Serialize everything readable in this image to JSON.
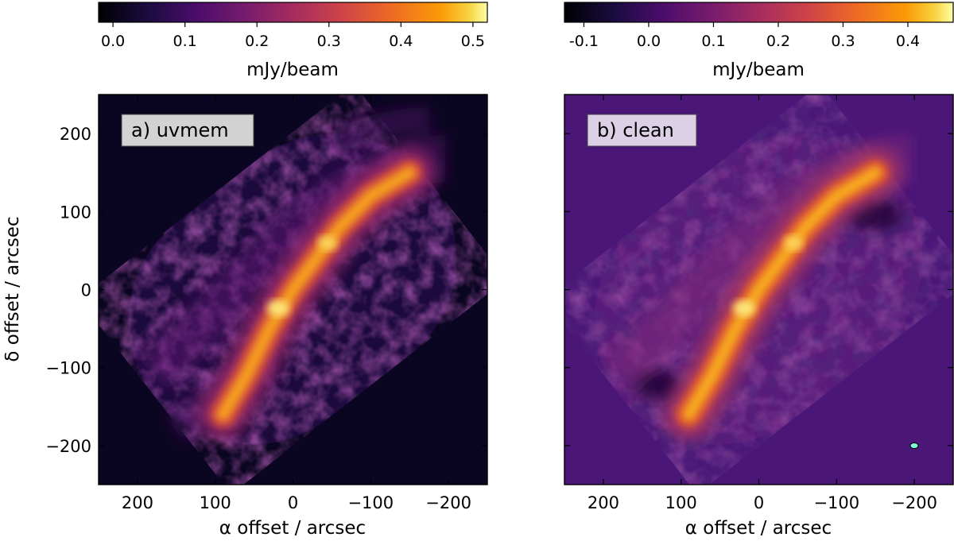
{
  "chart_data": [
    {
      "type": "heatmap",
      "panel_label": "a) uvmem",
      "colormap": "inferno",
      "background_color": "#0a0520",
      "label_box_color": "#d3d3d3",
      "colorbar": {
        "label": "mJy/beam",
        "range": [
          -0.02,
          0.52
        ],
        "ticks": [
          0.0,
          0.1,
          0.2,
          0.3,
          0.4,
          0.5
        ],
        "tick_labels": [
          "0.0",
          "0.1",
          "0.2",
          "0.3",
          "0.4",
          "0.5"
        ]
      },
      "xlabel": "α offset / arcsec",
      "ylabel": "δ offset / arcsec",
      "xlim": [
        250,
        -250
      ],
      "ylim": [
        -250,
        250
      ],
      "x_ticks": [
        200,
        100,
        0,
        -100,
        -200
      ],
      "x_tick_labels": [
        "200",
        "100",
        "0",
        "−100",
        "−200"
      ],
      "y_ticks": [
        200,
        100,
        0,
        -100,
        -200
      ],
      "y_tick_labels": [
        "200",
        "100",
        "0",
        "−100",
        "−200"
      ],
      "image_description": "filament-shaped emission along a diagonal ridge from lower-left to upper-right, peak ~0.5 mJy/beam near (20,-20) and (-40,60) arcsec",
      "ridge_points": [
        [
          90,
          -160
        ],
        [
          60,
          -110
        ],
        [
          30,
          -50
        ],
        [
          0,
          0
        ],
        [
          -30,
          40
        ],
        [
          -60,
          80
        ],
        [
          -100,
          120
        ],
        [
          -150,
          150
        ]
      ]
    },
    {
      "type": "heatmap",
      "panel_label": "b) clean",
      "colormap": "inferno",
      "background_color": "#4a1678",
      "label_box_color": "#dcd0e6",
      "beam_marker_color": "#7fffd4",
      "colorbar": {
        "label": "mJy/beam",
        "range": [
          -0.13,
          0.47
        ],
        "ticks": [
          -0.1,
          0.0,
          0.1,
          0.2,
          0.3,
          0.4
        ],
        "tick_labels": [
          "-0.1",
          "0.0",
          "0.1",
          "0.2",
          "0.3",
          "0.4"
        ]
      },
      "xlabel": "α offset / arcsec",
      "xlim": [
        250,
        -250
      ],
      "ylim": [
        -250,
        250
      ],
      "x_ticks": [
        200,
        100,
        0,
        -100,
        -200
      ],
      "x_tick_labels": [
        "200",
        "100",
        "0",
        "−100",
        "−200"
      ],
      "y_ticks": [
        200,
        100,
        0,
        -100,
        -200
      ],
      "ridge_points": [
        [
          90,
          -160
        ],
        [
          60,
          -110
        ],
        [
          30,
          -50
        ],
        [
          0,
          0
        ],
        [
          -30,
          40
        ],
        [
          -60,
          80
        ],
        [
          -100,
          120
        ],
        [
          -150,
          150
        ]
      ]
    }
  ]
}
